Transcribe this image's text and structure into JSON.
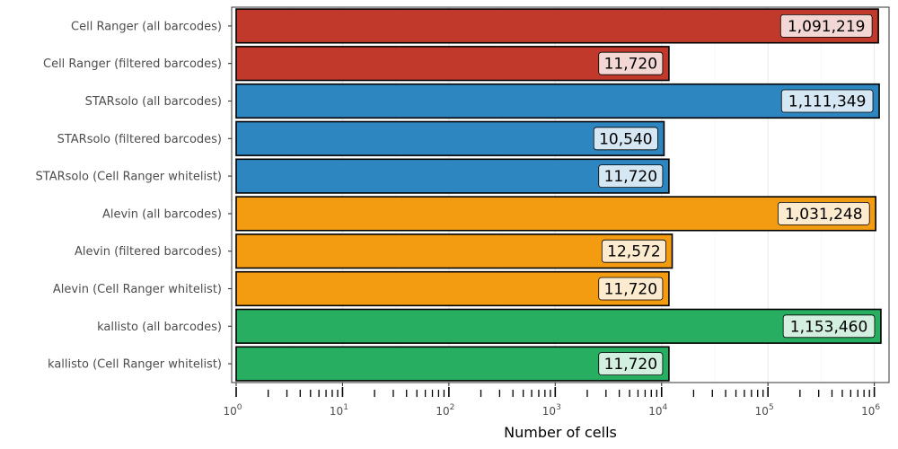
{
  "chart_data": {
    "type": "bar",
    "orientation": "horizontal",
    "xscale": "log",
    "xlabel": "Number of cells",
    "ylabel": "",
    "xlim": [
      1,
      1200000
    ],
    "xticks": [
      {
        "base": "10",
        "exp": "0"
      },
      {
        "base": "10",
        "exp": "1"
      },
      {
        "base": "10",
        "exp": "2"
      },
      {
        "base": "10",
        "exp": "3"
      },
      {
        "base": "10",
        "exp": "4"
      },
      {
        "base": "10",
        "exp": "5"
      },
      {
        "base": "10",
        "exp": "6"
      }
    ],
    "grid": true,
    "legend": "none",
    "colors": {
      "Cell Ranger": "#c0392b",
      "STARsolo": "#2e86c1",
      "Alevin": "#f39c12",
      "kallisto": "#27ae60"
    },
    "categories": [
      "Cell Ranger (all barcodes)",
      "Cell Ranger (filtered barcodes)",
      "STARsolo (all barcodes)",
      "STARsolo (filtered barcodes)",
      "STARsolo (Cell Ranger whitelist)",
      "Alevin (all barcodes)",
      "Alevin (filtered barcodes)",
      "Alevin (Cell Ranger whitelist)",
      "kallisto (all barcodes)",
      "kallisto (Cell Ranger whitelist)"
    ],
    "values": [
      1091219,
      11720,
      1111349,
      10540,
      11720,
      1031248,
      12572,
      11720,
      1153460,
      11720
    ],
    "value_labels": [
      "1,091,219",
      "11,720",
      "1,111,349",
      "10,540",
      "11,720",
      "1,031,248",
      "12,572",
      "11,720",
      "1,153,460",
      "11,720"
    ],
    "groups": [
      "Cell Ranger",
      "Cell Ranger",
      "STARsolo",
      "STARsolo",
      "STARsolo",
      "Alevin",
      "Alevin",
      "Alevin",
      "kallisto",
      "kallisto"
    ]
  }
}
